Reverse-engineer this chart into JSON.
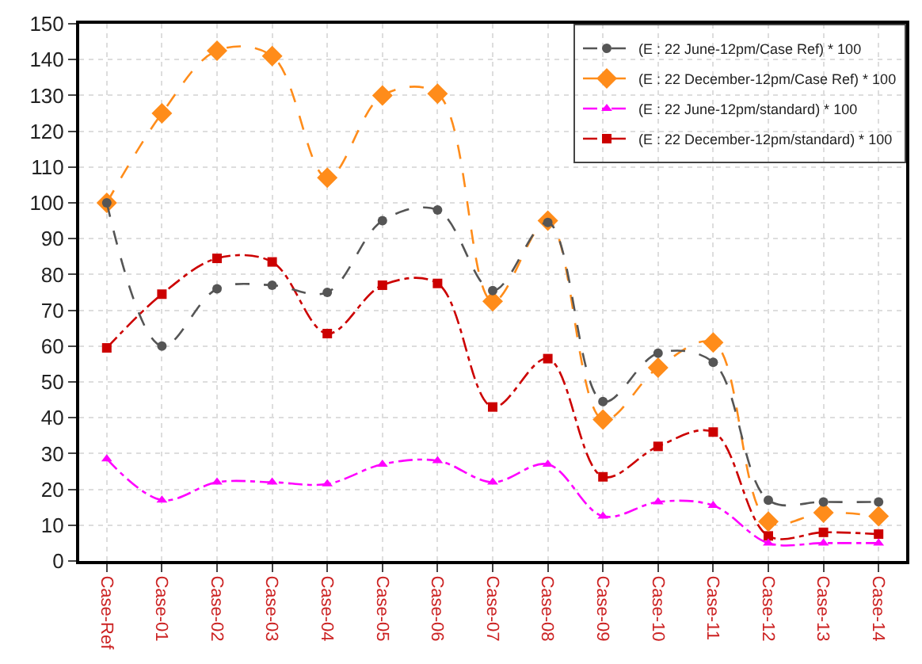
{
  "chart_data": {
    "type": "line",
    "categories": [
      "Case-Ref",
      "Case-01",
      "Case-02",
      "Case-03",
      "Case-04",
      "Case-05",
      "Case-06",
      "Case-07",
      "Case-08",
      "Case-09",
      "Case-10",
      "Case-11",
      "Case-12",
      "Case-13",
      "Case-14"
    ],
    "series": [
      {
        "name": "(E : 22 June-12pm/Case Ref) * 100",
        "color": "#555555",
        "marker": "circle",
        "line_style": "dashed",
        "values": [
          100,
          60,
          76,
          77,
          75,
          95,
          98,
          75.5,
          94.5,
          44.5,
          58,
          55.5,
          17,
          16.5,
          16.5
        ]
      },
      {
        "name": "(E : 22 December-12pm/Case Ref) * 100",
        "color": "#ff8c1a",
        "marker": "diamond",
        "line_style": "dashed",
        "values": [
          100,
          125,
          142.5,
          141,
          107,
          130,
          130.5,
          72.5,
          95,
          39.5,
          54,
          61,
          11,
          13.5,
          12.5
        ]
      },
      {
        "name": "(E : 22 June-12pm/standard) * 100",
        "color": "#ff00ff",
        "marker": "triangle",
        "line_style": "dotted",
        "values": [
          28.5,
          17,
          22,
          22,
          21.5,
          27,
          28,
          22,
          27,
          12.5,
          16.5,
          15.5,
          5,
          5,
          5
        ]
      },
      {
        "name": "(E : 22 December-12pm/standard) * 100",
        "color": "#cc0000",
        "marker": "square",
        "line_style": "dotted",
        "values": [
          59.5,
          74.5,
          84.5,
          83.5,
          63.5,
          77,
          77.5,
          43,
          56.5,
          23.5,
          32,
          36,
          7,
          8,
          7.5
        ]
      }
    ],
    "ylim": [
      0,
      150
    ],
    "yticks": [
      0,
      10,
      20,
      30,
      40,
      50,
      60,
      70,
      80,
      90,
      100,
      110,
      120,
      130,
      140,
      150
    ],
    "grid": true,
    "legend": "top right"
  }
}
